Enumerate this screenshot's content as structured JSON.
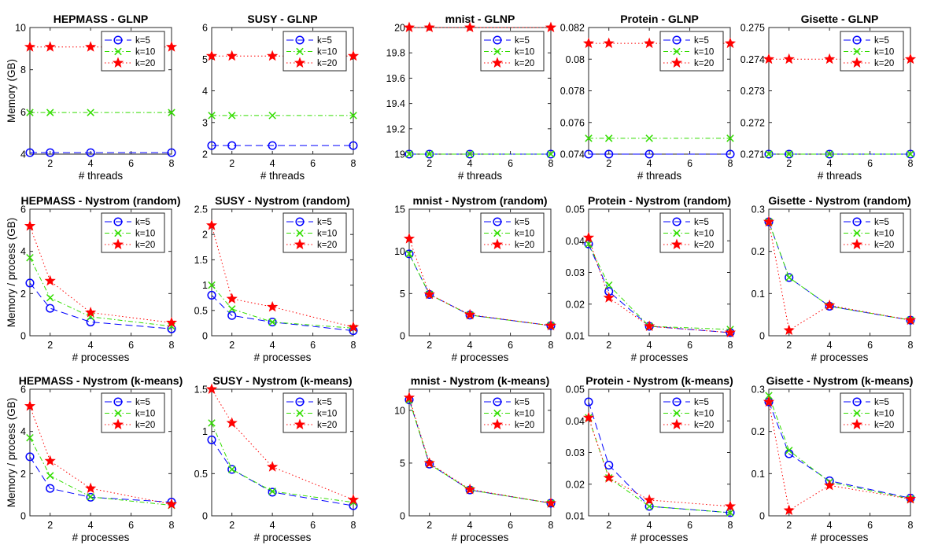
{
  "legend_labels": [
    "k=5",
    "k=10",
    "k=20"
  ],
  "series_styles": [
    {
      "name": "k=5",
      "color": "#0000ff",
      "dash": "9 5",
      "marker": "circle"
    },
    {
      "name": "k=10",
      "color": "#33dd00",
      "dash": "6 3 1.5 3",
      "marker": "x"
    },
    {
      "name": "k=20",
      "color": "#ff0000",
      "dash": "1.5 3",
      "marker": "star"
    }
  ],
  "chart_data": [
    {
      "type": "line",
      "title": "HEPMASS - GLNP",
      "xlabel": "# threads",
      "ylabel": "Memory (GB)",
      "x": [
        1,
        2,
        4,
        8
      ],
      "xlim": [
        1,
        8
      ],
      "xticks": [
        2,
        4,
        6,
        8
      ],
      "ylim": [
        4,
        10
      ],
      "yticks": [
        4,
        6,
        8,
        10
      ],
      "ytick_labels": [
        "4",
        "6",
        "8",
        "10"
      ],
      "series": [
        {
          "name": "k=5",
          "values": [
            4.07,
            4.07,
            4.07,
            4.07
          ]
        },
        {
          "name": "k=10",
          "values": [
            5.97,
            5.97,
            5.97,
            5.97
          ]
        },
        {
          "name": "k=20",
          "values": [
            9.08,
            9.08,
            9.08,
            9.08
          ]
        }
      ]
    },
    {
      "type": "line",
      "title": "SUSY - GLNP",
      "xlabel": "# threads",
      "ylabel": "",
      "x": [
        1,
        2,
        4,
        8
      ],
      "xlim": [
        1,
        8
      ],
      "xticks": [
        2,
        4,
        6,
        8
      ],
      "ylim": [
        2,
        6
      ],
      "yticks": [
        2,
        3,
        4,
        5,
        6
      ],
      "ytick_labels": [
        "2",
        "3",
        "4",
        "5",
        "6"
      ],
      "series": [
        {
          "name": "k=5",
          "values": [
            2.27,
            2.27,
            2.27,
            2.27
          ]
        },
        {
          "name": "k=10",
          "values": [
            3.22,
            3.22,
            3.22,
            3.22
          ]
        },
        {
          "name": "k=20",
          "values": [
            5.1,
            5.1,
            5.1,
            5.1
          ]
        }
      ]
    },
    {
      "type": "line",
      "title": "mnist - GLNP",
      "xlabel": "# threads",
      "ylabel": "",
      "x": [
        1,
        2,
        4,
        8
      ],
      "xlim": [
        1,
        8
      ],
      "xticks": [
        2,
        4,
        6,
        8
      ],
      "ylim": [
        19,
        20
      ],
      "yticks": [
        19,
        19.2,
        19.4,
        19.6,
        19.8,
        20
      ],
      "ytick_labels": [
        "19",
        "19.2",
        "19.4",
        "19.6",
        "19.8",
        "20"
      ],
      "series": [
        {
          "name": "k=5",
          "values": [
            19,
            19,
            19,
            19
          ]
        },
        {
          "name": "k=10",
          "values": [
            19,
            19,
            19,
            19
          ]
        },
        {
          "name": "k=20",
          "values": [
            20,
            20,
            20,
            20
          ]
        }
      ]
    },
    {
      "type": "line",
      "title": "Protein - GLNP",
      "xlabel": "# threads",
      "ylabel": "",
      "x": [
        1,
        2,
        4,
        8
      ],
      "xlim": [
        1,
        8
      ],
      "xticks": [
        2,
        4,
        6,
        8
      ],
      "ylim": [
        0.074,
        0.082
      ],
      "yticks": [
        0.074,
        0.076,
        0.078,
        0.08,
        0.082
      ],
      "ytick_labels": [
        "0.074",
        "0.076",
        "0.078",
        "0.08",
        "0.082"
      ],
      "series": [
        {
          "name": "k=5",
          "values": [
            0.074,
            0.074,
            0.074,
            0.074
          ]
        },
        {
          "name": "k=10",
          "values": [
            0.075,
            0.075,
            0.075,
            0.075
          ]
        },
        {
          "name": "k=20",
          "values": [
            0.081,
            0.081,
            0.081,
            0.081
          ]
        }
      ]
    },
    {
      "type": "line",
      "title": "Gisette - GLNP",
      "xlabel": "# threads",
      "ylabel": "",
      "x": [
        1,
        2,
        4,
        8
      ],
      "xlim": [
        1,
        8
      ],
      "xticks": [
        2,
        4,
        6,
        8
      ],
      "ylim": [
        0.271,
        0.275
      ],
      "yticks": [
        0.271,
        0.272,
        0.273,
        0.274,
        0.275
      ],
      "ytick_labels": [
        "0.271",
        "0.272",
        "0.273",
        "0.274",
        "0.275"
      ],
      "series": [
        {
          "name": "k=5",
          "values": [
            0.271,
            0.271,
            0.271,
            0.271
          ]
        },
        {
          "name": "k=10",
          "values": [
            0.271,
            0.271,
            0.271,
            0.271
          ]
        },
        {
          "name": "k=20",
          "values": [
            0.274,
            0.274,
            0.274,
            0.274
          ]
        }
      ]
    },
    {
      "type": "line",
      "title": "HEPMASS - Nystrom (random)",
      "xlabel": "# processes",
      "ylabel": "Memory / process (GB)",
      "x": [
        1,
        2,
        4,
        8
      ],
      "xlim": [
        1,
        8
      ],
      "xticks": [
        2,
        4,
        6,
        8
      ],
      "ylim": [
        0,
        6
      ],
      "yticks": [
        0,
        2,
        4,
        6
      ],
      "ytick_labels": [
        "0",
        "2",
        "4",
        "6"
      ],
      "series": [
        {
          "name": "k=5",
          "values": [
            2.5,
            1.3,
            0.65,
            0.33
          ]
        },
        {
          "name": "k=10",
          "values": [
            3.7,
            1.8,
            0.9,
            0.45
          ]
        },
        {
          "name": "k=20",
          "values": [
            5.2,
            2.6,
            1.1,
            0.62
          ]
        }
      ]
    },
    {
      "type": "line",
      "title": "SUSY - Nystrom (random)",
      "xlabel": "# processes",
      "ylabel": "",
      "x": [
        1,
        2,
        4,
        8
      ],
      "xlim": [
        1,
        8
      ],
      "xticks": [
        2,
        4,
        6,
        8
      ],
      "ylim": [
        0,
        2.5
      ],
      "yticks": [
        0,
        0.5,
        1,
        1.5,
        2,
        2.5
      ],
      "ytick_labels": [
        "0",
        "0.5",
        "1",
        "1.5",
        "2",
        "2.5"
      ],
      "series": [
        {
          "name": "k=5",
          "values": [
            0.8,
            0.4,
            0.27,
            0.1
          ]
        },
        {
          "name": "k=10",
          "values": [
            1.0,
            0.53,
            0.27,
            0.15
          ]
        },
        {
          "name": "k=20",
          "values": [
            2.18,
            0.73,
            0.57,
            0.17
          ]
        }
      ]
    },
    {
      "type": "line",
      "title": "mnist - Nystrom (random)",
      "xlabel": "# processes",
      "ylabel": "",
      "x": [
        1,
        2,
        4,
        8
      ],
      "xlim": [
        1,
        8
      ],
      "xticks": [
        2,
        4,
        6,
        8
      ],
      "ylim": [
        0,
        15
      ],
      "yticks": [
        0,
        5,
        10,
        15
      ],
      "ytick_labels": [
        "0",
        "5",
        "10",
        "15"
      ],
      "series": [
        {
          "name": "k=5",
          "values": [
            9.7,
            4.9,
            2.45,
            1.2
          ]
        },
        {
          "name": "k=10",
          "values": [
            9.7,
            4.9,
            2.45,
            1.2
          ]
        },
        {
          "name": "k=20",
          "values": [
            11.5,
            4.9,
            2.5,
            1.2
          ]
        }
      ]
    },
    {
      "type": "line",
      "title": "Protein - Nystrom (random)",
      "xlabel": "# processes",
      "ylabel": "",
      "x": [
        1,
        2,
        4,
        8
      ],
      "xlim": [
        1,
        8
      ],
      "xticks": [
        2,
        4,
        6,
        8
      ],
      "ylim": [
        0.01,
        0.05
      ],
      "yticks": [
        0.01,
        0.02,
        0.03,
        0.04,
        0.05
      ],
      "ytick_labels": [
        "0.01",
        "0.02",
        "0.03",
        "0.04",
        "0.05"
      ],
      "series": [
        {
          "name": "k=5",
          "values": [
            0.039,
            0.024,
            0.013,
            0.011
          ]
        },
        {
          "name": "k=10",
          "values": [
            0.039,
            0.026,
            0.013,
            0.012
          ]
        },
        {
          "name": "k=20",
          "values": [
            0.041,
            0.022,
            0.013,
            0.011
          ]
        }
      ]
    },
    {
      "type": "line",
      "title": "Gisette - Nystrom (random)",
      "xlabel": "# processes",
      "ylabel": "",
      "x": [
        1,
        2,
        4,
        8
      ],
      "xlim": [
        1,
        8
      ],
      "xticks": [
        2,
        4,
        6,
        8
      ],
      "ylim": [
        0,
        0.3
      ],
      "yticks": [
        0,
        0.1,
        0.2,
        0.3
      ],
      "ytick_labels": [
        "0",
        "0.1",
        "0.2",
        "0.3"
      ],
      "series": [
        {
          "name": "k=5",
          "values": [
            0.27,
            0.138,
            0.07,
            0.037
          ]
        },
        {
          "name": "k=10",
          "values": [
            0.27,
            0.138,
            0.07,
            0.037
          ]
        },
        {
          "name": "k=20",
          "values": [
            0.27,
            0.013,
            0.072,
            0.037
          ]
        }
      ]
    },
    {
      "type": "line",
      "title": "HEPMASS - Nystrom (k-means)",
      "xlabel": "# processes",
      "ylabel": "Memory / process (GB)",
      "x": [
        1,
        2,
        4,
        8
      ],
      "xlim": [
        1,
        8
      ],
      "xticks": [
        2,
        4,
        6,
        8
      ],
      "ylim": [
        0,
        6
      ],
      "yticks": [
        0,
        2,
        4,
        6
      ],
      "ytick_labels": [
        "0",
        "2",
        "4",
        "6"
      ],
      "series": [
        {
          "name": "k=5",
          "values": [
            2.8,
            1.3,
            0.88,
            0.65
          ]
        },
        {
          "name": "k=10",
          "values": [
            3.7,
            1.9,
            0.9,
            0.5
          ]
        },
        {
          "name": "k=20",
          "values": [
            5.2,
            2.6,
            1.3,
            0.55
          ]
        }
      ]
    },
    {
      "type": "line",
      "title": "SUSY - Nystrom (k-means)",
      "xlabel": "# processes",
      "ylabel": "",
      "x": [
        1,
        2,
        4,
        8
      ],
      "xlim": [
        1,
        8
      ],
      "xticks": [
        2,
        4,
        6,
        8
      ],
      "ylim": [
        0,
        1.5
      ],
      "yticks": [
        0,
        0.5,
        1,
        1.5
      ],
      "ytick_labels": [
        "0",
        "0.5",
        "1",
        "1.5"
      ],
      "series": [
        {
          "name": "k=5",
          "values": [
            0.9,
            0.55,
            0.28,
            0.12
          ]
        },
        {
          "name": "k=10",
          "values": [
            1.1,
            0.55,
            0.29,
            0.16
          ]
        },
        {
          "name": "k=20",
          "values": [
            1.5,
            1.1,
            0.58,
            0.19
          ]
        }
      ]
    },
    {
      "type": "line",
      "title": "mnist - Nystrom (k-means)",
      "xlabel": "# processes",
      "ylabel": "",
      "x": [
        1,
        2,
        4,
        8
      ],
      "xlim": [
        1,
        8
      ],
      "xticks": [
        2,
        4,
        6,
        8
      ],
      "ylim": [
        0,
        12
      ],
      "yticks": [
        0,
        5,
        10
      ],
      "ytick_labels": [
        "0",
        "5",
        "10"
      ],
      "series": [
        {
          "name": "k=5",
          "values": [
            11.0,
            4.9,
            2.45,
            1.2
          ]
        },
        {
          "name": "k=10",
          "values": [
            11.0,
            4.9,
            2.45,
            1.2
          ]
        },
        {
          "name": "k=20",
          "values": [
            11.2,
            5.0,
            2.5,
            1.2
          ]
        }
      ]
    },
    {
      "type": "line",
      "title": "Protein - Nystrom (k-means)",
      "xlabel": "# processes",
      "ylabel": "",
      "x": [
        1,
        2,
        4,
        8
      ],
      "xlim": [
        1,
        8
      ],
      "xticks": [
        2,
        4,
        6,
        8
      ],
      "ylim": [
        0.01,
        0.05
      ],
      "yticks": [
        0.01,
        0.02,
        0.03,
        0.04,
        0.05
      ],
      "ytick_labels": [
        "0.01",
        "0.02",
        "0.03",
        "0.04",
        "0.05"
      ],
      "series": [
        {
          "name": "k=5",
          "values": [
            0.046,
            0.026,
            0.013,
            0.011
          ]
        },
        {
          "name": "k=10",
          "values": [
            0.041,
            0.022,
            0.013,
            0.011
          ]
        },
        {
          "name": "k=20",
          "values": [
            0.041,
            0.022,
            0.015,
            0.013
          ]
        }
      ]
    },
    {
      "type": "line",
      "title": "Gisette - Nystrom (k-means)",
      "xlabel": "# processes",
      "ylabel": "",
      "x": [
        1,
        2,
        4,
        8
      ],
      "xlim": [
        1,
        8
      ],
      "xticks": [
        2,
        4,
        6,
        8
      ],
      "ylim": [
        0,
        0.3
      ],
      "yticks": [
        0,
        0.1,
        0.2,
        0.3
      ],
      "ytick_labels": [
        "0",
        "0.1",
        "0.2",
        "0.3"
      ],
      "series": [
        {
          "name": "k=5",
          "values": [
            0.27,
            0.147,
            0.083,
            0.042
          ]
        },
        {
          "name": "k=10",
          "values": [
            0.285,
            0.155,
            0.08,
            0.04
          ]
        },
        {
          "name": "k=20",
          "values": [
            0.27,
            0.013,
            0.072,
            0.04
          ]
        }
      ]
    }
  ]
}
